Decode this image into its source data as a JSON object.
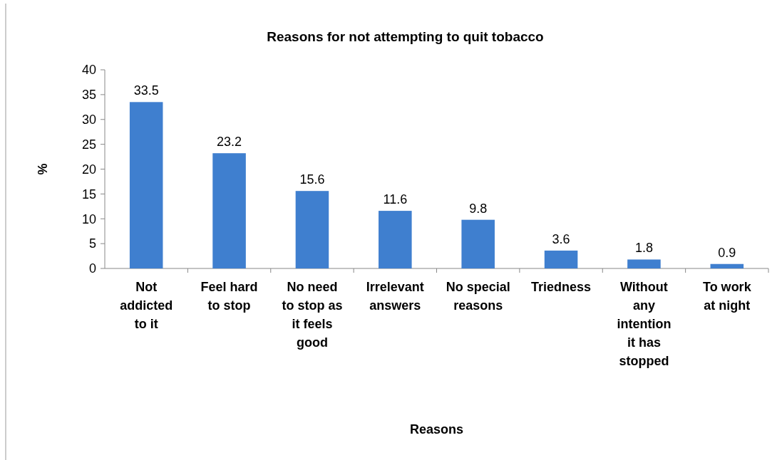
{
  "chart_data": {
    "type": "bar",
    "title": "Reasons for not attempting to quit tobacco",
    "xlabel": "Reasons",
    "ylabel": "%",
    "categories": [
      "Not\naddicted\nto it",
      "Feel hard\nto stop",
      "No need\nto stop as\nit feels\ngood",
      "Irrelevant\nanswers",
      "No special\nreasons",
      "Triedness",
      "Without\nany\nintention\nit has\nstopped",
      "To work\nat night"
    ],
    "values": [
      33.5,
      23.2,
      15.6,
      11.6,
      9.8,
      3.6,
      1.8,
      0.9
    ],
    "color": "#3f7fcf",
    "ylim": [
      0,
      40
    ],
    "yticks": [
      0,
      5,
      10,
      15,
      20,
      25,
      30,
      35,
      40
    ],
    "data_labels": true
  }
}
